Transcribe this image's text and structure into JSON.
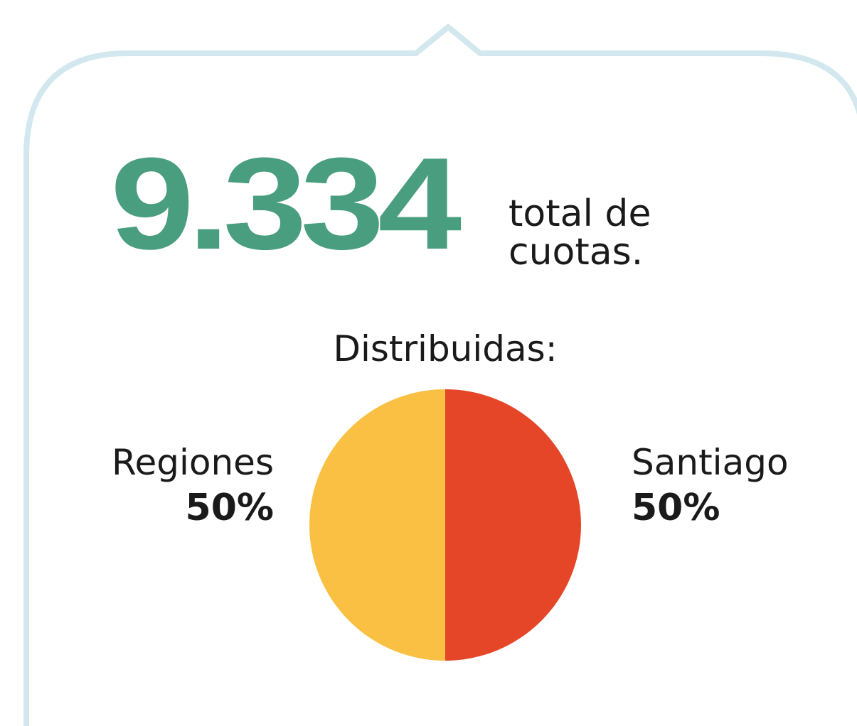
{
  "header": {
    "value": "9.334",
    "caption": [
      "total de",
      "cuotas."
    ]
  },
  "chart_data": {
    "type": "pie",
    "title": "Distribuidas:",
    "categories": [
      "Santiago",
      "Regiones"
    ],
    "values": [
      50,
      50
    ],
    "value_labels": [
      "50%",
      "50%"
    ],
    "colors": [
      "#E54628",
      "#F9C043"
    ]
  }
}
